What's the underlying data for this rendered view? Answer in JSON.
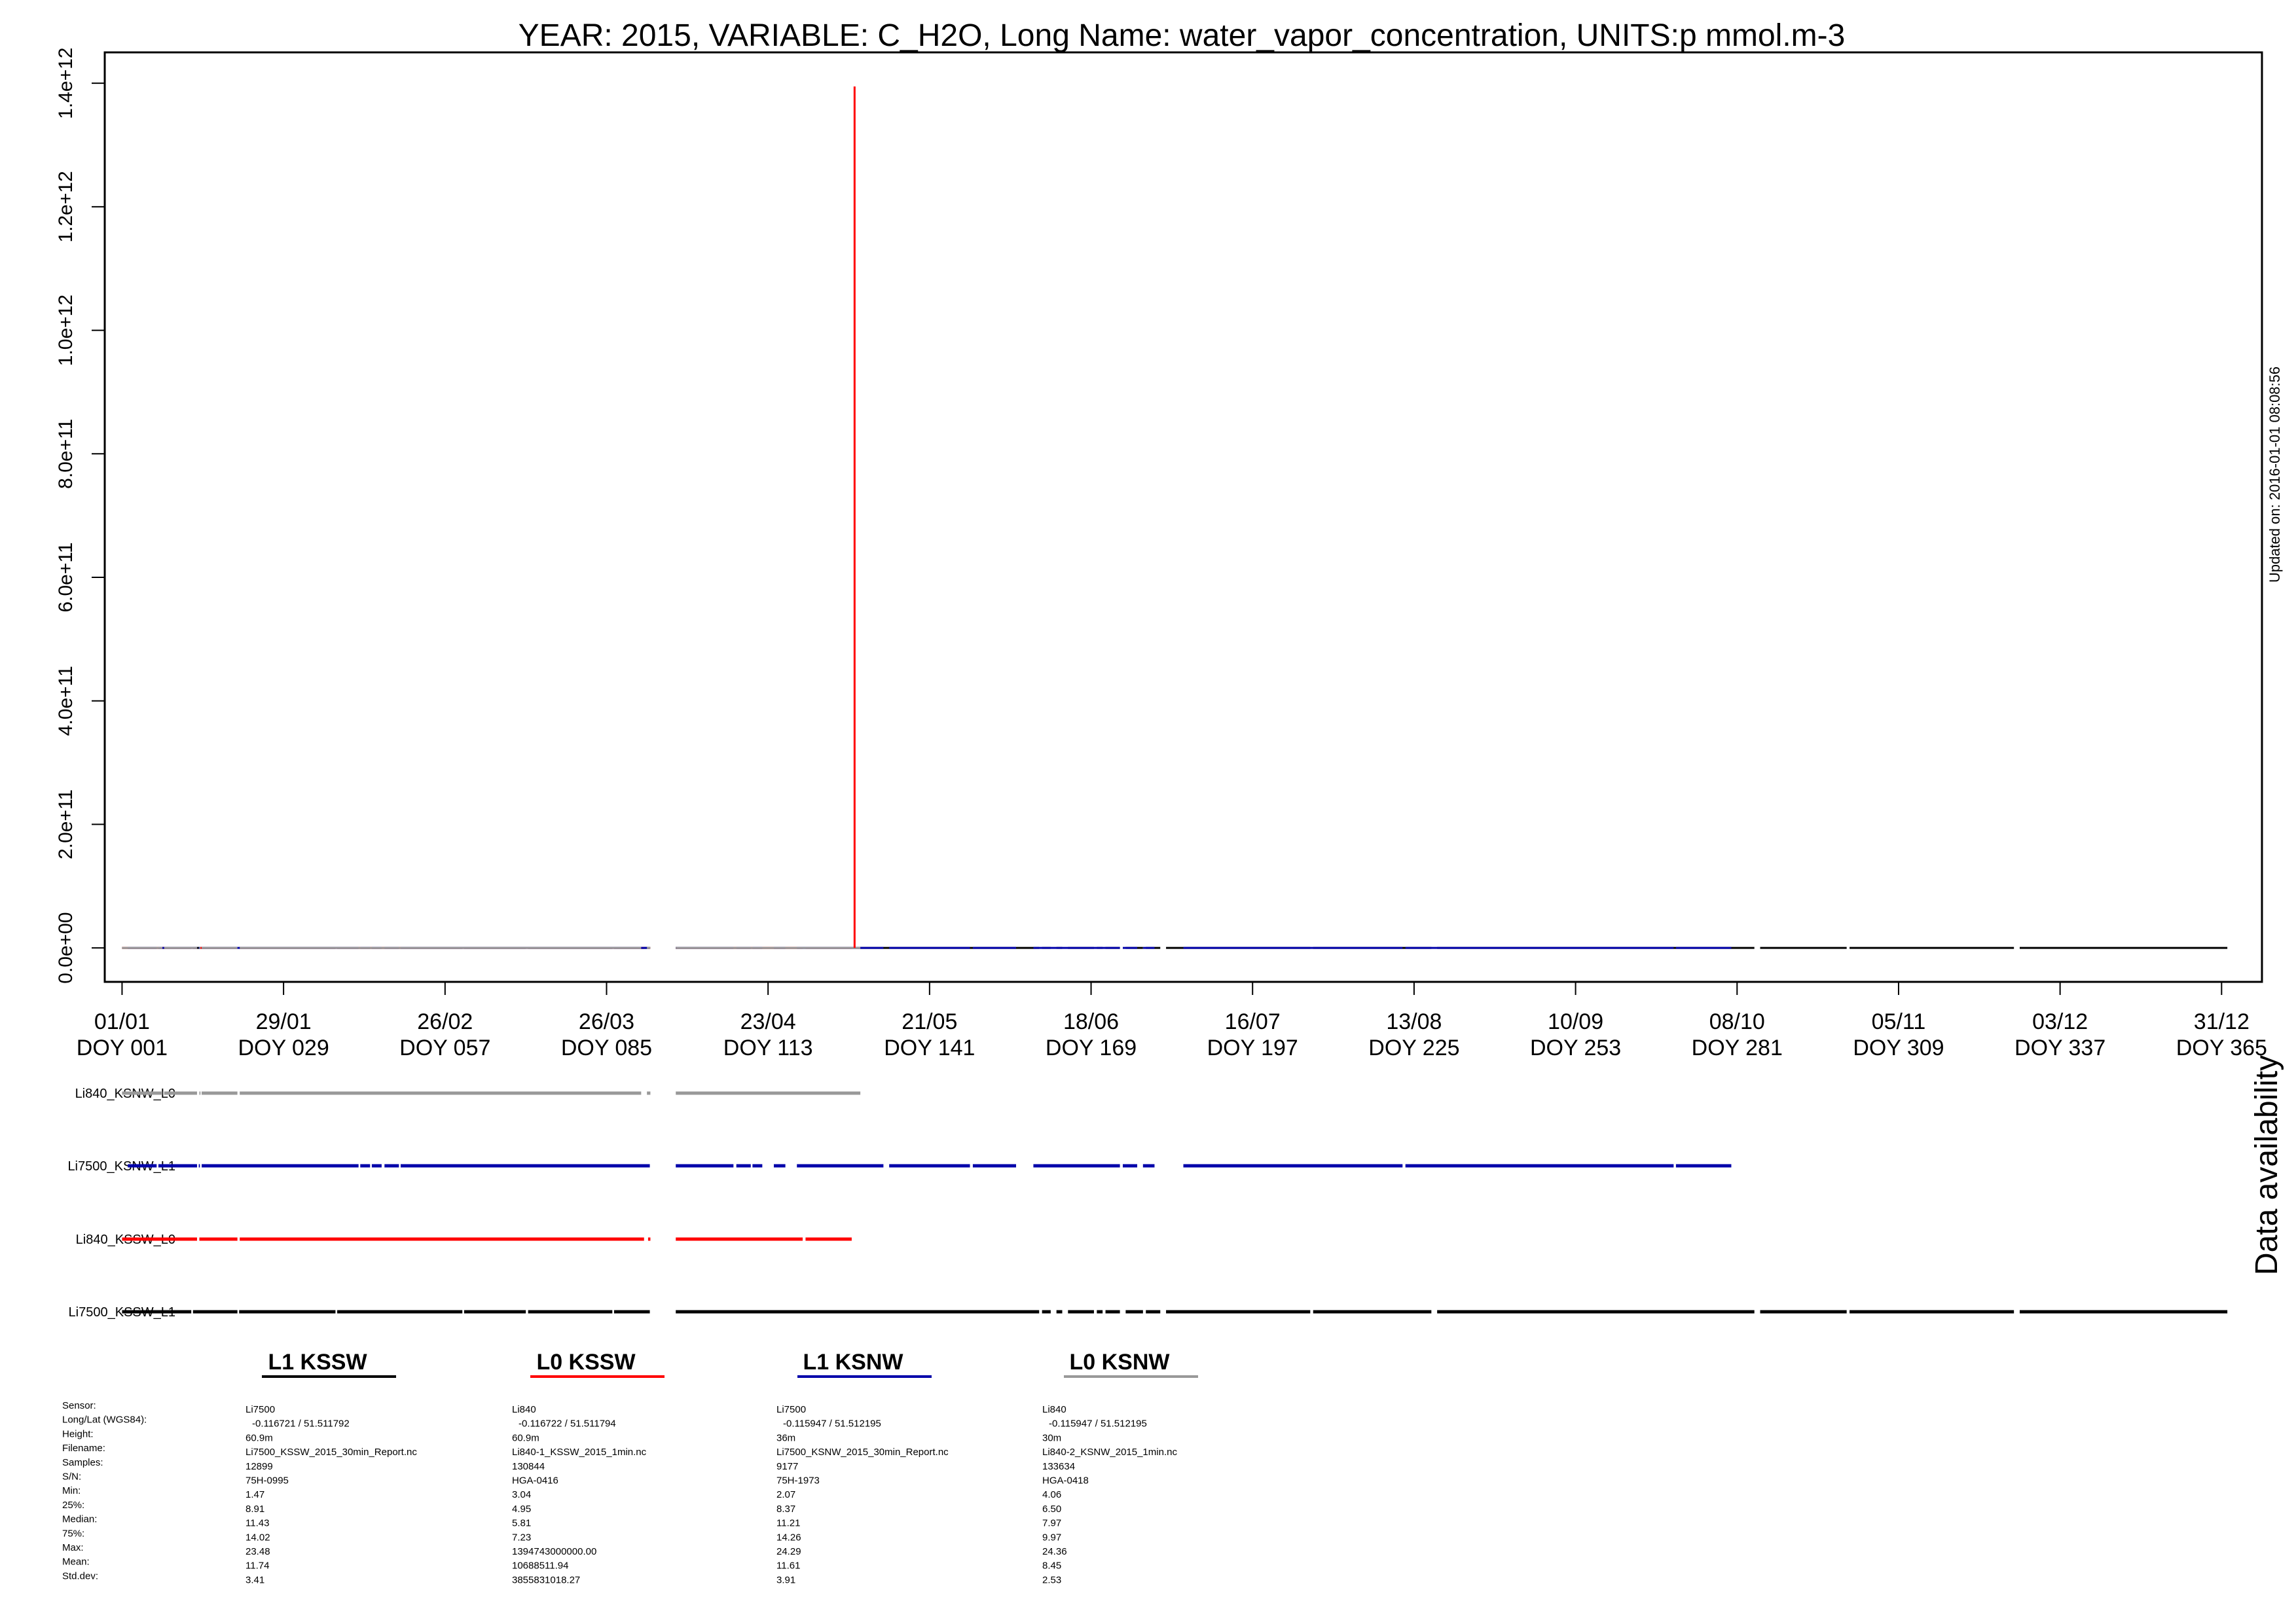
{
  "chart_data": {
    "type": "line",
    "title": "YEAR: 2015, VARIABLE: C_H2O, Long Name: water_vapor_concentration, UNITS:p mmol.m-3",
    "updated": "Updated on: 2016-01-01 08:08:56",
    "xlim": [
      -2,
      372
    ],
    "ylim": [
      -55000000000.0,
      1450000000000.0
    ],
    "y_ticks": [
      {
        "value": 0,
        "label": "0.0e+00"
      },
      {
        "value": 200000000000,
        "label": "2.0e+11"
      },
      {
        "value": 400000000000,
        "label": "4.0e+11"
      },
      {
        "value": 600000000000,
        "label": "6.0e+11"
      },
      {
        "value": 800000000000,
        "label": "8.0e+11"
      },
      {
        "value": 1000000000000,
        "label": "1.0e+12"
      },
      {
        "value": 1200000000000,
        "label": "1.2e+12"
      },
      {
        "value": 1400000000000,
        "label": "1.4e+12"
      }
    ],
    "x_ticks": [
      {
        "doy": 1,
        "date": "01/01",
        "doy_label": "DOY 001"
      },
      {
        "doy": 29,
        "date": "29/01",
        "doy_label": "DOY 029"
      },
      {
        "doy": 57,
        "date": "26/02",
        "doy_label": "DOY 057"
      },
      {
        "doy": 85,
        "date": "26/03",
        "doy_label": "DOY 085"
      },
      {
        "doy": 113,
        "date": "23/04",
        "doy_label": "DOY 113"
      },
      {
        "doy": 141,
        "date": "21/05",
        "doy_label": "DOY 141"
      },
      {
        "doy": 169,
        "date": "18/06",
        "doy_label": "DOY 169"
      },
      {
        "doy": 197,
        "date": "16/07",
        "doy_label": "DOY 197"
      },
      {
        "doy": 225,
        "date": "13/08",
        "doy_label": "DOY 225"
      },
      {
        "doy": 253,
        "date": "10/09",
        "doy_label": "DOY 253"
      },
      {
        "doy": 281,
        "date": "08/10",
        "doy_label": "DOY 281"
      },
      {
        "doy": 309,
        "date": "05/11",
        "doy_label": "DOY 309"
      },
      {
        "doy": 337,
        "date": "03/12",
        "doy_label": "DOY 337"
      },
      {
        "doy": 365,
        "date": "31/12",
        "doy_label": "DOY 365"
      }
    ],
    "series": [
      {
        "name": "Li840_KSNW_L0",
        "color": "#999999",
        "value": 0,
        "segments": [
          [
            1,
            8
          ],
          [
            8.3,
            14
          ],
          [
            14.4,
            14.6
          ],
          [
            14.8,
            21
          ],
          [
            21.4,
            91
          ],
          [
            92,
            92.6
          ],
          [
            97,
            129
          ]
        ]
      },
      {
        "name": "Li7500_KSNW_L1",
        "color": "#0000aa",
        "value": 0,
        "segments": [
          [
            2,
            7
          ],
          [
            7.3,
            14
          ],
          [
            14.3,
            14.5
          ],
          [
            14.8,
            42
          ],
          [
            42.3,
            44
          ],
          [
            44.3,
            46
          ],
          [
            46.5,
            49
          ],
          [
            49.3,
            92.5
          ],
          [
            97,
            107
          ],
          [
            107.5,
            110
          ],
          [
            110.3,
            112
          ],
          [
            114,
            116
          ],
          [
            118,
            133
          ],
          [
            134,
            148
          ],
          [
            148.5,
            156
          ],
          [
            159,
            174
          ],
          [
            174.5,
            177
          ],
          [
            178,
            180
          ],
          [
            185,
            223
          ],
          [
            223.5,
            270
          ],
          [
            270.4,
            280
          ]
        ]
      },
      {
        "name": "Li840_KSSW_L0",
        "color": "#ff0000",
        "value": 0,
        "segments": [
          [
            1,
            14
          ],
          [
            14.4,
            21
          ],
          [
            21.4,
            91.5
          ],
          [
            92.2,
            92.6
          ],
          [
            97,
            119
          ],
          [
            119.5,
            127.5
          ]
        ]
      },
      {
        "name": "Li7500_KSSW_L1",
        "color": "#000000",
        "value": 0,
        "segments": [
          [
            1,
            13
          ],
          [
            13.3,
            21
          ],
          [
            21.3,
            38
          ],
          [
            38.3,
            60
          ],
          [
            60.3,
            71
          ],
          [
            71.4,
            86
          ],
          [
            86.3,
            92.5
          ],
          [
            97,
            160
          ],
          [
            160.5,
            162
          ],
          [
            163,
            164
          ],
          [
            165,
            169.5
          ],
          [
            170,
            171
          ],
          [
            171.5,
            174
          ],
          [
            175,
            178
          ],
          [
            178.5,
            181
          ],
          [
            182,
            207
          ],
          [
            207.5,
            228
          ],
          [
            229,
            284
          ],
          [
            285,
            300
          ],
          [
            300.5,
            329
          ],
          [
            330,
            366
          ]
        ]
      }
    ],
    "spike": {
      "series": "Li840_KSSW_L0",
      "doy": 128,
      "value": 1394743000000,
      "color": "#ff0000"
    },
    "availability": {
      "label": "Data availability",
      "rows": [
        {
          "label": "Li840_KSNW_L0",
          "color": "#999999"
        },
        {
          "label": "Li7500_KSNW_L1",
          "color": "#0000aa"
        },
        {
          "label": "Li840_KSSW_L0",
          "color": "#ff0000"
        },
        {
          "label": "Li7500_KSSW_L1",
          "color": "#000000"
        }
      ]
    },
    "legend": [
      {
        "title": "L1 KSSW",
        "color": "#000000"
      },
      {
        "title": "L0 KSSW",
        "color": "#ff0000"
      },
      {
        "title": "L1 KSNW",
        "color": "#0000aa"
      },
      {
        "title": "L0 KSNW",
        "color": "#999999"
      }
    ],
    "info_table": {
      "row_labels": [
        "Sensor:",
        "Long/Lat (WGS84):",
        "Height:",
        "Filename:",
        "Samples:",
        "S/N:",
        "Min:",
        "25%:",
        "Median:",
        "75%:",
        "Max:",
        "Mean:",
        "Std.dev:"
      ],
      "columns": [
        [
          "Li7500",
          "-0.116721 / 51.511792",
          "60.9m",
          "Li7500_KSSW_2015_30min_Report.nc",
          "12899",
          "75H-0995",
          "1.47",
          "8.91",
          "11.43",
          "14.02",
          "23.48",
          "11.74",
          "3.41"
        ],
        [
          "Li840",
          "-0.116722 / 51.511794",
          "60.9m",
          "Li840-1_KSSW_2015_1min.nc",
          "130844",
          "HGA-0416",
          "3.04",
          "4.95",
          "5.81",
          "7.23",
          "1394743000000.00",
          "10688511.94",
          "3855831018.27"
        ],
        [
          "Li7500",
          "-0.115947 / 51.512195",
          "36m",
          "Li7500_KSNW_2015_30min_Report.nc",
          "9177",
          "75H-1973",
          "2.07",
          "8.37",
          "11.21",
          "14.26",
          "24.29",
          "11.61",
          "3.91"
        ],
        [
          "Li840",
          "-0.115947 / 51.512195",
          "30m",
          "Li840-2_KSNW_2015_1min.nc",
          "133634",
          "HGA-0418",
          "4.06",
          "6.50",
          "7.97",
          "9.97",
          "24.36",
          "8.45",
          "2.53"
        ]
      ]
    }
  }
}
